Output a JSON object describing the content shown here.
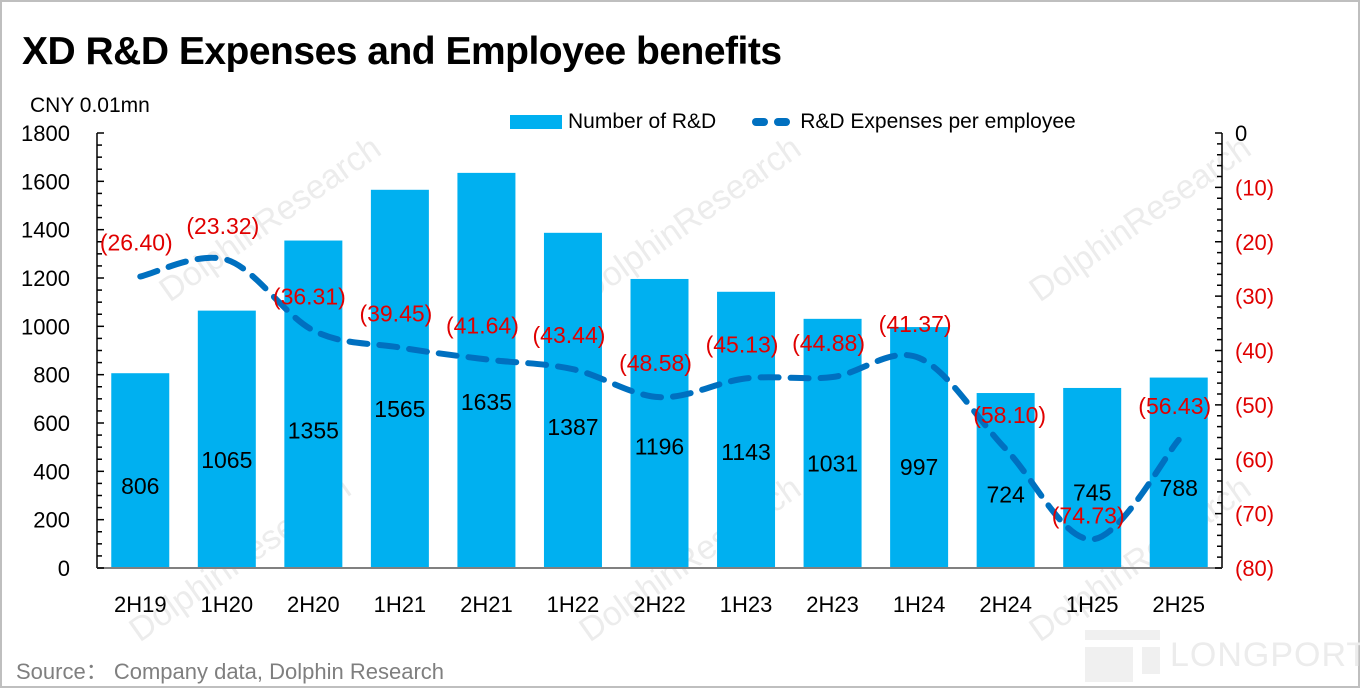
{
  "header": {
    "title": "XD R&D Expenses and Employee benefits",
    "unit": "CNY 0.01mn"
  },
  "legend": {
    "bar_label": "Number of R&D",
    "line_label": "R&D Expenses per employee"
  },
  "footer": {
    "source": "Source： Company data, Dolphin Research",
    "logo_text": "LONGPORT"
  },
  "watermark_text": "DolphinResearch",
  "colors": {
    "bar": "#00b0f0",
    "line": "#0070c0",
    "line_label": "#e00000",
    "right_axis_label": "#e00000",
    "axis": "#000000",
    "source": "#7f7f7f"
  },
  "chart_data": {
    "type": "bar",
    "title": "XD R&D Expenses and Employee benefits",
    "xlabel": "",
    "ylabel": "CNY 0.01mn",
    "categories": [
      "2H19",
      "1H20",
      "2H20",
      "1H21",
      "2H21",
      "1H22",
      "2H22",
      "1H23",
      "2H23",
      "1H24",
      "2H24",
      "1H25",
      "2H25"
    ],
    "series": [
      {
        "name": "Number of R&D",
        "type": "bar",
        "axis": "left",
        "values": [
          806,
          1065,
          1355,
          1565,
          1635,
          1387,
          1196,
          1143,
          1031,
          997,
          724,
          745,
          788
        ],
        "labels": [
          "806",
          "1065",
          "1355",
          "1565",
          "1635",
          "1387",
          "1196",
          "1143",
          "1031",
          "997",
          "724",
          "745",
          "788"
        ]
      },
      {
        "name": "R&D Expenses per employee",
        "type": "line",
        "style": "dashed-smooth",
        "axis": "right",
        "values": [
          -26.4,
          -23.32,
          -36.31,
          -39.45,
          -41.64,
          -43.44,
          -48.58,
          -45.13,
          -44.88,
          -41.37,
          -58.1,
          -74.73,
          -56.43
        ],
        "labels": [
          "(26.40)",
          "(23.32)",
          "(36.31)",
          "(39.45)",
          "(41.64)",
          "(43.44)",
          "(48.58)",
          "(45.13)",
          "(44.88)",
          "(41.37)",
          "(58.10)",
          "(74.73)",
          "(56.43)"
        ]
      }
    ],
    "y_left": {
      "range": [
        0,
        1800
      ],
      "ticks": [
        0,
        200,
        400,
        600,
        800,
        1000,
        1200,
        1400,
        1600,
        1800
      ],
      "tick_labels": [
        "0",
        "200",
        "400",
        "600",
        "800",
        "1000",
        "1200",
        "1400",
        "1600",
        "1800"
      ]
    },
    "y_right": {
      "range": [
        -80,
        0
      ],
      "ticks": [
        0,
        -10,
        -20,
        -30,
        -40,
        -50,
        -60,
        -70,
        -80
      ],
      "tick_labels": [
        "0",
        "(10)",
        "(20)",
        "(30)",
        "(40)",
        "(50)",
        "(60)",
        "(70)",
        "(80)"
      ]
    },
    "grid": false,
    "legend_position": "top-right"
  }
}
